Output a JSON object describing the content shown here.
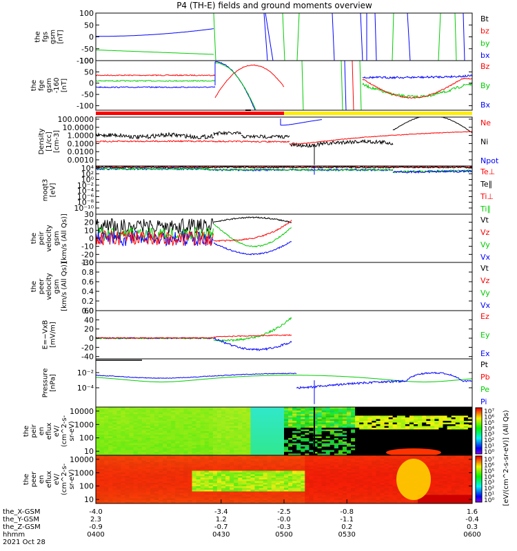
{
  "title": "P4 (TH-E) fields and ground moments overview",
  "colors": {
    "black": "#000000",
    "red": "#ff0000",
    "green": "#00cc00",
    "blue": "#0000ff",
    "yellow": "#ffee00"
  },
  "chart_data": [
    {
      "type": "line",
      "id": "fgs",
      "ylabel": [
        "the",
        "fgs",
        "gsm",
        "[nT]"
      ],
      "ylim": [
        -100,
        100
      ],
      "ticks": [
        100,
        50,
        0,
        -50,
        -100
      ],
      "legend": [
        "Bt",
        "bz",
        "by",
        "bx"
      ],
      "legend_colors": [
        "black",
        "red",
        "green",
        "blue"
      ]
    },
    {
      "type": "line",
      "id": "fge",
      "ylabel": [
        "the",
        "fge",
        "gsm",
        "-160",
        "[nT]"
      ],
      "ylim": [
        -120,
        100
      ],
      "ticks": [
        100,
        50,
        0,
        -50,
        -100
      ],
      "legend": [
        "Bz",
        "By",
        "Bx"
      ],
      "legend_colors": [
        "red",
        "green",
        "blue"
      ]
    },
    {
      "type": "line",
      "id": "density",
      "scale": "log",
      "ylabel": [
        "Density",
        "[1/cc]",
        "[cm-3]"
      ],
      "ylim": [
        0.0003,
        300
      ],
      "ticks": [
        "100.0000",
        "10.0000",
        "1.0000",
        "0.1000",
        "0.0100",
        "0.0010"
      ],
      "legend": [
        "Ne",
        "Ni",
        "Npot"
      ],
      "legend_colors": [
        "red",
        "black",
        "blue"
      ]
    },
    {
      "type": "line",
      "id": "temp",
      "scale": "log",
      "ylabel": [
        "moqt3",
        "[eV]"
      ],
      "ylim": [
        "1e-10",
        "1e4"
      ],
      "ticks": [
        "10⁴",
        "10²",
        "10⁰",
        "10⁻²",
        "10⁻⁴",
        "10⁻⁶",
        "10⁻⁸",
        "10⁻¹⁰"
      ],
      "legend": [
        "Te⊥",
        "Te∥",
        "Ti⊥",
        "Ti∥"
      ],
      "legend_colors": [
        "red",
        "black",
        "red",
        "green"
      ]
    },
    {
      "type": "line",
      "id": "peir_vel",
      "ylabel": [
        "the",
        "peir",
        "velocity",
        "gsm",
        "[km/s (All Qs)]"
      ],
      "ylim": [
        -30,
        30
      ],
      "ticks": [
        30,
        20,
        10,
        0,
        -10,
        -20,
        -30
      ],
      "legend": [
        "Vt",
        "Vz",
        "Vy",
        "Vx"
      ],
      "legend_colors": [
        "black",
        "red",
        "green",
        "blue"
      ]
    },
    {
      "type": "line",
      "id": "peer_vel",
      "ylabel": [
        "the",
        "peer",
        "velocity",
        "gsm",
        "[km/s (All Qs)]"
      ],
      "ylim": [
        0,
        1
      ],
      "ticks": [
        "1.0",
        "0.8",
        "0.6",
        "0.4",
        "0.2",
        "0.0"
      ],
      "legend": [
        "Vt",
        "Vz",
        "Vy",
        "Vx"
      ],
      "legend_colors": [
        "black",
        "red",
        "green",
        "blue"
      ]
    },
    {
      "type": "line",
      "id": "efield",
      "ylabel": [
        "E=−VxB",
        "[mV/m]"
      ],
      "ylim": [
        -45,
        60
      ],
      "ticks": [
        60,
        40,
        20,
        0,
        -20,
        -40
      ],
      "legend": [
        "Ez",
        "Ey",
        "Ex"
      ],
      "legend_colors": [
        "red",
        "green",
        "blue"
      ]
    },
    {
      "type": "line",
      "id": "pressure",
      "scale": "log",
      "ylabel": [
        "Pressure",
        "[nPa]"
      ],
      "ylim": [
        "1e-5",
        "1"
      ],
      "ticks": [
        "10⁻²",
        "10⁻⁴"
      ],
      "legend": [
        "Pt",
        "Pb",
        "Pe",
        "Pi"
      ],
      "legend_colors": [
        "black",
        "red",
        "green",
        "blue"
      ]
    },
    {
      "type": "heatmap",
      "id": "peir_en",
      "ylabel": [
        "the",
        "peir",
        "en",
        "eflux",
        "eV/",
        "(cm^2-s-",
        "sr-eV)"
      ],
      "ylim": [
        5,
        20000
      ],
      "ticks": [
        10000,
        1000,
        100,
        10
      ]
    },
    {
      "type": "heatmap",
      "id": "peer_en",
      "ylabel": [
        "the",
        "peer",
        "en",
        "eflux",
        "eV/",
        "(cm^2-s-",
        "sr-eV)"
      ],
      "ylim": [
        5,
        20000
      ],
      "ticks": [
        10000,
        1000,
        100,
        10
      ]
    }
  ],
  "colorbar": {
    "label": "[eV/(cm^2-s-sr-eV)] (All Qs)",
    "ticks": [
      "10⁷",
      "10⁶",
      "10⁵",
      "10⁴",
      "10³",
      "10²",
      "10¹",
      "10⁰"
    ]
  },
  "colorbar2": {
    "ticks": [
      "10⁷",
      "10⁶",
      "10⁵",
      "10⁴",
      "10³",
      "10²",
      "10¹",
      "10⁰"
    ]
  },
  "x_axis": {
    "rows": [
      {
        "label": "the_X-GSM",
        "values": [
          "-4.0",
          "-3.4",
          "-2.5",
          "-0.8",
          "1.6"
        ]
      },
      {
        "label": "the_Y-GSM",
        "values": [
          "2.3",
          "1.2",
          "-0.0",
          "-1.1",
          "-0.4"
        ]
      },
      {
        "label": "the_Z-GSM",
        "values": [
          "-0.9",
          "-0.7",
          "-0.3",
          "0.2",
          "0.3"
        ]
      },
      {
        "label": "hhmm",
        "values": [
          "0400",
          "0430",
          "0500",
          "0530",
          "0600"
        ]
      }
    ],
    "date": "2021 Oct 28"
  }
}
